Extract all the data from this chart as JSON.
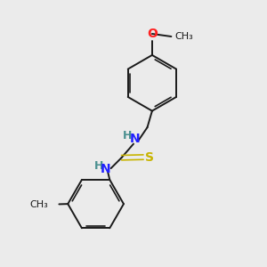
{
  "background_color": "#ebebeb",
  "bond_color": "#1a1a1a",
  "n_color": "#2020ff",
  "o_color": "#ff2020",
  "s_color": "#c8b400",
  "h_color": "#4a9090",
  "figsize": [
    3.0,
    3.0
  ],
  "dpi": 100,
  "xlim": [
    0,
    10
  ],
  "ylim": [
    0,
    10
  ]
}
